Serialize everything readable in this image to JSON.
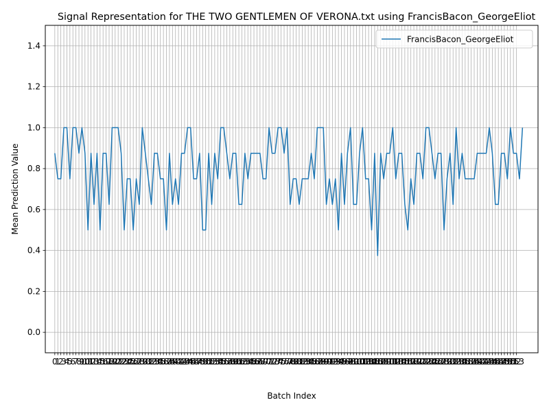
{
  "chart_data": {
    "type": "line",
    "title": "Signal Representation for THE TWO GENTLEMEN OF VERONA.txt using FrancisBacon_GeorgeEliot",
    "xlabel": "Batch Index",
    "ylabel": "Mean Prediction Value",
    "ylim": [
      -0.1,
      1.5
    ],
    "xlim": [
      -3.15,
      160.15
    ],
    "grid": true,
    "legend_position": "top-right",
    "line_color": "#1f77b4",
    "yticks": [
      "0.0",
      "0.2",
      "0.4",
      "0.6",
      "0.8",
      "1.0",
      "1.2",
      "1.4"
    ],
    "xticks": [
      "0",
      "1",
      "2",
      "3",
      "4",
      "5",
      "6",
      "7",
      "8",
      "9",
      "10",
      "11",
      "12",
      "13",
      "14",
      "15",
      "16",
      "17",
      "18",
      "19",
      "20",
      "21",
      "22",
      "23",
      "24",
      "25",
      "26",
      "27",
      "28",
      "29",
      "30",
      "31",
      "32",
      "33",
      "34",
      "35",
      "36",
      "37",
      "38",
      "39",
      "40",
      "41",
      "42",
      "43",
      "44",
      "45",
      "46",
      "47",
      "48",
      "49",
      "50",
      "51",
      "52",
      "53",
      "54",
      "55",
      "56",
      "57",
      "58",
      "59",
      "60",
      "61",
      "62",
      "63",
      "64",
      "65",
      "66",
      "67",
      "68",
      "69",
      "70",
      "71",
      "72",
      "73",
      "74",
      "75",
      "76",
      "77",
      "78",
      "79",
      "80",
      "81",
      "82",
      "83",
      "84",
      "85",
      "86",
      "87",
      "88",
      "89",
      "90",
      "91",
      "92",
      "93",
      "94",
      "95",
      "96",
      "97",
      "98",
      "99",
      "100",
      "101",
      "102",
      "103",
      "104",
      "105",
      "106",
      "107",
      "108",
      "109",
      "110",
      "111",
      "112",
      "113",
      "114",
      "115",
      "116",
      "117",
      "118",
      "119",
      "120",
      "121",
      "122",
      "123",
      "124",
      "125",
      "126",
      "127",
      "128",
      "129",
      "130",
      "131",
      "132",
      "133",
      "134",
      "135",
      "136",
      "137",
      "138",
      "139",
      "140",
      "141",
      "142",
      "143",
      "144",
      "145",
      "146",
      "147",
      "148",
      "149",
      "150",
      "151",
      "152",
      "153"
    ],
    "series": [
      {
        "name": "FrancisBacon_GeorgeEliot",
        "values": [
          0.875,
          0.75,
          0.75,
          1.0,
          1.0,
          0.75,
          1.0,
          1.0,
          0.875,
          1.0,
          0.875,
          0.5,
          0.875,
          0.625,
          0.875,
          0.5,
          0.875,
          0.875,
          0.625,
          1.0,
          1.0,
          1.0,
          0.875,
          0.5,
          0.75,
          0.75,
          0.5,
          0.75,
          0.625,
          1.0,
          0.875,
          0.75,
          0.625,
          0.875,
          0.875,
          0.75,
          0.75,
          0.5,
          0.875,
          0.625,
          0.75,
          0.625,
          0.875,
          0.875,
          1.0,
          1.0,
          0.75,
          0.75,
          0.875,
          0.5,
          0.5,
          0.875,
          0.625,
          0.875,
          0.75,
          1.0,
          1.0,
          0.875,
          0.75,
          0.875,
          0.875,
          0.625,
          0.625,
          0.875,
          0.75,
          0.875,
          0.875,
          0.875,
          0.875,
          0.75,
          0.75,
          1.0,
          0.875,
          0.875,
          1.0,
          1.0,
          0.875,
          1.0,
          0.625,
          0.75,
          0.75,
          0.625,
          0.75,
          0.75,
          0.75,
          0.875,
          0.75,
          1.0,
          1.0,
          1.0,
          0.625,
          0.75,
          0.625,
          0.75,
          0.5,
          0.875,
          0.625,
          0.875,
          1.0,
          0.625,
          0.625,
          0.875,
          1.0,
          0.75,
          0.75,
          0.5,
          0.875,
          0.375,
          0.875,
          0.75,
          0.875,
          0.875,
          1.0,
          0.75,
          0.875,
          0.875,
          0.625,
          0.5,
          0.75,
          0.625,
          0.875,
          0.875,
          0.75,
          1.0,
          1.0,
          0.875,
          0.75,
          0.875,
          0.875,
          0.5,
          0.75,
          0.875,
          0.625,
          1.0,
          0.75,
          0.875,
          0.75,
          0.75,
          0.75,
          0.75,
          0.875,
          0.875,
          0.875,
          0.875,
          1.0,
          0.875,
          0.625,
          0.625,
          0.875,
          0.875,
          0.75,
          1.0,
          0.875,
          0.875,
          0.75,
          1.0
        ]
      }
    ]
  }
}
